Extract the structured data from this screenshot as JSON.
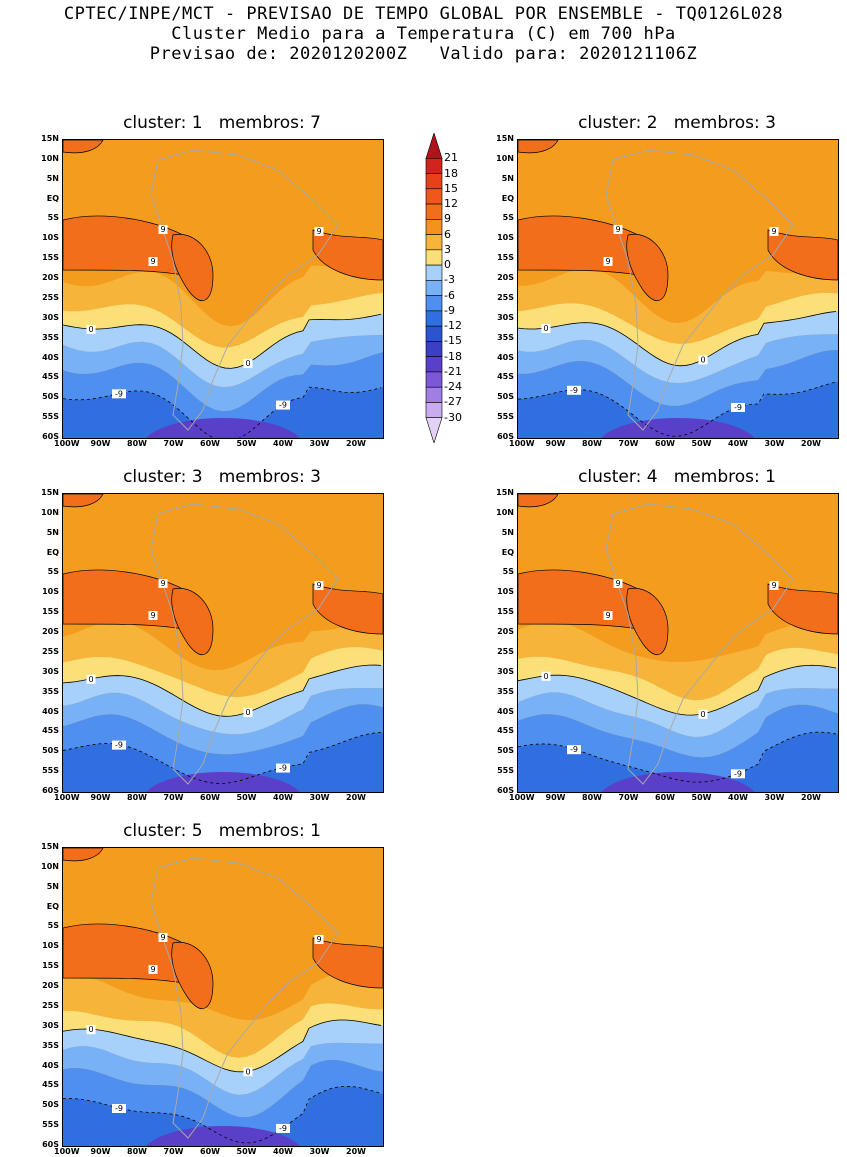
{
  "header": {
    "line1": "CPTEC/INPE/MCT - PREVISAO DE TEMPO GLOBAL POR ENSEMBLE - TQ0126L028",
    "line2": "Cluster Medio para a Temperatura (C) em 700 hPa",
    "line3": "Previsao de: 2020120200Z   Valido para: 2020121106Z"
  },
  "panels": [
    {
      "title": "cluster: 1   membros: 7"
    },
    {
      "title": "cluster: 2   membros: 3"
    },
    {
      "title": "cluster: 3   membros: 3"
    },
    {
      "title": "cluster: 4   membros: 1"
    },
    {
      "title": "cluster: 5   membros: 1"
    }
  ],
  "axes": {
    "lat_labels": [
      "15N",
      "10N",
      "5N",
      "EQ",
      "5S",
      "10S",
      "15S",
      "20S",
      "25S",
      "30S",
      "35S",
      "40S",
      "45S",
      "50S",
      "55S",
      "60S"
    ],
    "lon_labels": [
      "100W",
      "90W",
      "80W",
      "70W",
      "60W",
      "50W",
      "40W",
      "30W",
      "20W"
    ]
  },
  "contour_labels": {
    "warm": "9",
    "zero": "0",
    "cold": "-9"
  },
  "colorbar": {
    "levels": [
      "21",
      "18",
      "15",
      "12",
      "9",
      "6",
      "3",
      "0",
      "-3",
      "-6",
      "-9",
      "-12",
      "-15",
      "-18",
      "-21",
      "-24",
      "-27",
      "-30"
    ],
    "colors": [
      "#b0141a",
      "#d4231c",
      "#e8411a",
      "#f0571b",
      "#f26e1b",
      "#f3921d",
      "#f6b43a",
      "#fbe07a",
      "#a7d0fb",
      "#78b1f5",
      "#4e8ff0",
      "#2f6fe0",
      "#2a55d0",
      "#3a3fc6",
      "#5a40c8",
      "#7c58d6",
      "#a17de4",
      "#c8acef",
      "#e2d2f6"
    ]
  },
  "colors": {
    "border": "#a9a9a9",
    "contour": "#000000"
  }
}
